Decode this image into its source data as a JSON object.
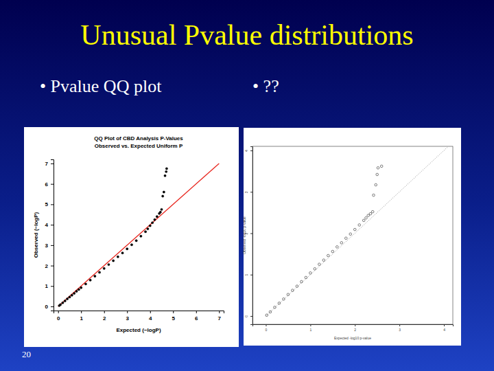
{
  "slide": {
    "title": "Unusual Pvalue distributions",
    "bullets": [
      "• Pvalue QQ plot",
      "• ??"
    ],
    "page_number": "20"
  },
  "chart_data": [
    {
      "type": "scatter",
      "title": "QQ Plot of CBD Analysis P-Values",
      "subtitle": "Observed vs. Expected Uniform P",
      "x_label": "Expected (−logP)",
      "y_label": "Observed (−logP)",
      "xlim": [
        -0.2,
        7.2
      ],
      "ylim": [
        -0.2,
        7.2
      ],
      "xticks": [
        0,
        1,
        2,
        3,
        4,
        5,
        6,
        7
      ],
      "yticks": [
        0,
        1,
        2,
        3,
        4,
        5,
        6,
        7
      ],
      "grid": false,
      "series": [
        {
          "type": "scatter",
          "marker": "circle",
          "color": "#000000",
          "x": [
            0.05,
            0.1,
            0.2,
            0.3,
            0.4,
            0.5,
            0.6,
            0.7,
            0.8,
            0.9,
            1.0,
            1.2,
            1.4,
            1.6,
            1.8,
            2.0,
            2.2,
            2.4,
            2.6,
            2.8,
            3.0,
            3.2,
            3.4,
            3.6,
            3.8,
            3.9,
            4.0,
            4.1,
            4.2,
            4.3,
            4.4,
            4.45,
            4.5,
            4.55,
            4.6,
            4.65,
            4.7,
            4.72
          ],
          "values": [
            0.04,
            0.09,
            0.18,
            0.27,
            0.37,
            0.46,
            0.55,
            0.64,
            0.74,
            0.83,
            0.92,
            1.1,
            1.29,
            1.48,
            1.67,
            1.86,
            2.05,
            2.24,
            2.43,
            2.62,
            2.82,
            3.02,
            3.22,
            3.44,
            3.66,
            3.8,
            3.95,
            4.1,
            4.25,
            4.4,
            4.55,
            4.62,
            4.75,
            5.4,
            5.6,
            6.4,
            6.6,
            6.75
          ]
        },
        {
          "type": "line",
          "line_style": "solid",
          "color": "#e8241c",
          "x": [
            0,
            7
          ],
          "values": [
            0,
            7
          ]
        }
      ]
    },
    {
      "type": "scatter",
      "x_label": "Expected -log10 p-value",
      "y_label": "Observed -log10 p-value",
      "xlim": [
        -0.3,
        4.2
      ],
      "ylim": [
        -0.2,
        4.1
      ],
      "xticks": [
        0,
        1,
        2,
        3,
        4
      ],
      "yticks": [
        0,
        1,
        2,
        3,
        4
      ],
      "grid": false,
      "series": [
        {
          "type": "scatter",
          "marker": "open_circle",
          "color": "#000000",
          "x": [
            0.02,
            0.1,
            0.2,
            0.3,
            0.4,
            0.5,
            0.6,
            0.7,
            0.8,
            0.9,
            1.0,
            1.1,
            1.2,
            1.3,
            1.4,
            1.5,
            1.6,
            1.7,
            1.8,
            1.9,
            2.0,
            2.1,
            2.2,
            2.25,
            2.3,
            2.35,
            2.4,
            2.42,
            2.47,
            2.5,
            2.52,
            2.6
          ],
          "values": [
            0.02,
            0.1,
            0.21,
            0.31,
            0.41,
            0.52,
            0.62,
            0.72,
            0.83,
            0.93,
            1.04,
            1.14,
            1.25,
            1.35,
            1.46,
            1.56,
            1.67,
            1.77,
            1.88,
            1.98,
            2.09,
            2.2,
            2.31,
            2.37,
            2.43,
            2.47,
            2.52,
            2.92,
            3.17,
            3.42,
            3.58,
            3.62
          ]
        },
        {
          "type": "line",
          "line_style": "dotted",
          "color": "#777777",
          "x": [
            0,
            4.1
          ],
          "values": [
            0,
            4.1
          ]
        }
      ]
    }
  ]
}
